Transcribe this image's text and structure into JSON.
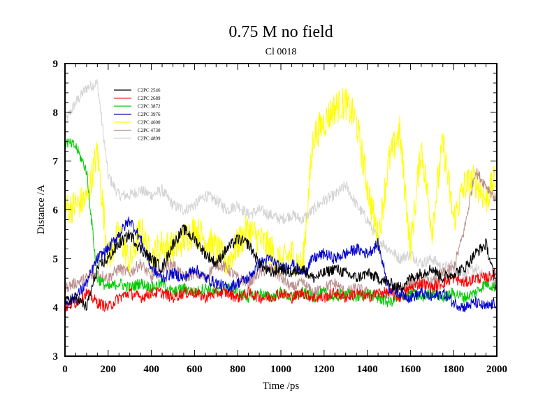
{
  "chart_data": {
    "type": "line",
    "title": "0.75 M no field",
    "subtitle": "Cl 0018",
    "xlabel": "Time /ps",
    "ylabel": "Distance /A",
    "xlim": [
      0,
      2000
    ],
    "ylim": [
      3,
      9
    ],
    "xticks": [
      "0",
      "200",
      "400",
      "600",
      "800",
      "1000",
      "1200",
      "1400",
      "1600",
      "1800",
      "2000"
    ],
    "yticks": [
      "3",
      "4",
      "5",
      "6",
      "7",
      "8",
      "9"
    ],
    "legend_position": "top-left",
    "x": [
      0,
      50,
      100,
      150,
      200,
      250,
      300,
      350,
      400,
      450,
      500,
      550,
      600,
      650,
      700,
      750,
      800,
      850,
      900,
      950,
      1000,
      1050,
      1100,
      1150,
      1200,
      1250,
      1300,
      1350,
      1400,
      1450,
      1500,
      1550,
      1600,
      1650,
      1700,
      1750,
      1800,
      1850,
      1900,
      1950,
      2000
    ],
    "series": [
      {
        "name": "C2PC 2546",
        "color": "#000000",
        "values": [
          4.1,
          4.2,
          4.0,
          4.8,
          5.0,
          5.3,
          5.5,
          5.2,
          5.0,
          4.8,
          5.3,
          5.6,
          5.4,
          5.1,
          4.9,
          5.2,
          5.4,
          5.3,
          4.9,
          4.7,
          4.8,
          4.7,
          4.8,
          4.6,
          4.7,
          4.8,
          4.7,
          4.6,
          4.7,
          4.6,
          4.5,
          4.4,
          4.6,
          4.7,
          4.8,
          4.6,
          4.7,
          4.8,
          5.1,
          5.3,
          4.4
        ]
      },
      {
        "name": "C2PC 2689",
        "color": "#ff0000",
        "values": [
          4.0,
          4.1,
          4.3,
          4.1,
          4.0,
          4.2,
          4.3,
          4.2,
          4.3,
          4.3,
          4.2,
          4.3,
          4.3,
          4.2,
          4.3,
          4.3,
          4.2,
          4.3,
          4.2,
          4.2,
          4.3,
          4.2,
          4.3,
          4.2,
          4.2,
          4.3,
          4.2,
          4.3,
          4.2,
          4.3,
          4.3,
          4.2,
          4.4,
          4.5,
          4.4,
          4.5,
          4.6,
          4.5,
          4.6,
          4.6,
          4.7
        ]
      },
      {
        "name": "C2PC 3872",
        "color": "#00cc00",
        "values": [
          7.4,
          7.3,
          6.8,
          4.6,
          4.4,
          4.5,
          4.4,
          4.5,
          4.4,
          4.5,
          4.3,
          4.4,
          4.3,
          4.4,
          4.3,
          4.4,
          4.3,
          4.2,
          4.3,
          4.2,
          4.3,
          4.2,
          4.3,
          4.2,
          4.3,
          4.2,
          4.3,
          4.2,
          4.3,
          4.2,
          4.1,
          4.2,
          4.3,
          4.2,
          4.3,
          4.2,
          4.3,
          4.2,
          4.3,
          4.5,
          4.4
        ]
      },
      {
        "name": "C2PC 3976",
        "color": "#0000cc",
        "values": [
          4.1,
          4.2,
          4.5,
          5.0,
          5.2,
          5.5,
          5.8,
          5.4,
          4.8,
          4.6,
          4.7,
          4.6,
          4.8,
          4.6,
          4.5,
          4.4,
          4.5,
          4.6,
          4.9,
          5.0,
          4.8,
          4.9,
          4.7,
          5.0,
          5.1,
          5.0,
          5.1,
          5.2,
          5.1,
          5.3,
          4.4,
          4.3,
          4.2,
          4.3,
          4.2,
          4.3,
          4.1,
          4.0,
          4.1,
          4.0,
          4.1
        ]
      },
      {
        "name": "C2PC 4600",
        "color": "#ffff00",
        "values": [
          6.0,
          6.1,
          6.2,
          7.2,
          5.0,
          5.5,
          4.9,
          5.6,
          5.0,
          5.3,
          5.2,
          5.4,
          5.6,
          5.4,
          5.2,
          4.9,
          5.3,
          5.6,
          5.4,
          5.2,
          4.9,
          5.1,
          4.8,
          7.5,
          7.8,
          8.1,
          8.2,
          7.8,
          6.5,
          5.4,
          7.0,
          7.6,
          5.2,
          7.3,
          5.6,
          7.4,
          5.8,
          6.5,
          6.6,
          6.2,
          6.7
        ]
      },
      {
        "name": "C2PC 4730",
        "color": "#bc8f8f",
        "values": [
          4.4,
          4.5,
          4.6,
          4.7,
          4.6,
          4.8,
          4.7,
          4.9,
          4.6,
          4.8,
          4.9,
          4.6,
          4.7,
          4.6,
          4.9,
          4.8,
          4.6,
          4.5,
          4.7,
          4.8,
          4.6,
          4.4,
          4.5,
          4.3,
          4.4,
          4.5,
          4.3,
          4.4,
          4.3,
          4.2,
          4.3,
          4.4,
          4.5,
          4.6,
          4.5,
          4.7,
          4.8,
          5.6,
          6.8,
          6.5,
          6.2
        ]
      },
      {
        "name": "C2PC 4899",
        "color": "#d3d3d3",
        "values": [
          7.8,
          8.2,
          8.5,
          8.6,
          6.7,
          6.3,
          6.3,
          6.4,
          6.3,
          6.4,
          6.1,
          6.0,
          6.1,
          6.3,
          6.2,
          6.0,
          6.1,
          5.9,
          6.0,
          5.9,
          5.8,
          5.9,
          5.8,
          6.0,
          6.2,
          6.3,
          6.5,
          6.1,
          5.8,
          5.4,
          5.2,
          5.0,
          5.1,
          4.9,
          5.0,
          4.8,
          4.9,
          4.7,
          4.8,
          4.6,
          4.5
        ]
      }
    ]
  }
}
